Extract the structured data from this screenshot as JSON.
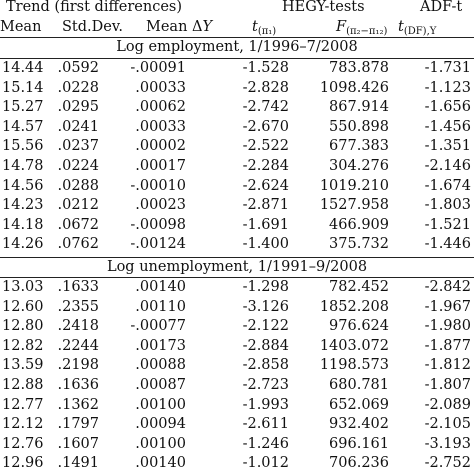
{
  "header": {
    "group_trend": "Trend (first differences)",
    "group_hegy": "HEGY-tests",
    "group_adf": "ADF-t",
    "col_mean": "Mean",
    "col_std": "Std.Dev.",
    "col_meandy_text": "Mean Δ",
    "col_meandy_var": "Y",
    "col_t_main": "t",
    "col_t_sub": "(π₁)",
    "col_f_main": "F",
    "col_f_sub": "(π₂−π₁₂)",
    "col_tdf_main": "t",
    "col_tdf_sub": "(DF),Y"
  },
  "sections": {
    "employment": "Log employment, 1/1996–7/2008",
    "unemployment": "Log unemployment, 1/1991–9/2008"
  },
  "employment_rows": [
    [
      "14.44",
      ".0592",
      "-.00091",
      "-1.528",
      "783.878",
      "-1.731"
    ],
    [
      "15.14",
      ".0228",
      ".00033",
      "-2.828",
      "1098.426",
      "-1.123"
    ],
    [
      "15.27",
      ".0295",
      ".00062",
      "-2.742",
      "867.914",
      "-1.656"
    ],
    [
      "14.57",
      ".0241",
      ".00033",
      "-2.670",
      "550.898",
      "-1.456"
    ],
    [
      "15.56",
      ".0237",
      ".00002",
      "-2.522",
      "677.383",
      "-1.351"
    ],
    [
      "14.78",
      ".0224",
      ".00017",
      "-2.284",
      "304.276",
      "-2.146"
    ],
    [
      "14.56",
      ".0288",
      "-.00010",
      "-2.624",
      "1019.210",
      "-1.674"
    ],
    [
      "14.23",
      ".0212",
      ".00023",
      "-2.871",
      "1527.958",
      "-1.803"
    ],
    [
      "14.18",
      ".0672",
      "-.00098",
      "-1.691",
      "466.909",
      "-1.521"
    ],
    [
      "14.26",
      ".0762",
      "-.00124",
      "-1.400",
      "375.732",
      "-1.446"
    ]
  ],
  "unemployment_rows": [
    [
      "13.03",
      ".1633",
      ".00140",
      "-1.298",
      "782.452",
      "-2.842"
    ],
    [
      "12.60",
      ".2355",
      ".00110",
      "-3.126",
      "1852.208",
      "-1.967"
    ],
    [
      "12.80",
      ".2418",
      "-.00077",
      "-2.122",
      "976.624",
      "-1.980"
    ],
    [
      "12.82",
      ".2244",
      ".00173",
      "-2.884",
      "1403.072",
      "-1.877"
    ],
    [
      "13.59",
      ".2198",
      ".00088",
      "-2.858",
      "1198.573",
      "-1.812"
    ],
    [
      "12.88",
      ".1636",
      ".00087",
      "-2.723",
      "680.781",
      "-1.807"
    ],
    [
      "12.77",
      ".1362",
      ".00100",
      "-1.993",
      "652.069",
      "-2.089"
    ],
    [
      "12.12",
      ".1797",
      ".00094",
      "-2.611",
      "932.402",
      "-2.105"
    ],
    [
      "12.76",
      ".1607",
      ".00100",
      "-1.246",
      "696.161",
      "-3.193"
    ],
    [
      "12.96",
      ".1491",
      ".00140",
      "-1.012",
      "706.236",
      "-2.752"
    ]
  ]
}
